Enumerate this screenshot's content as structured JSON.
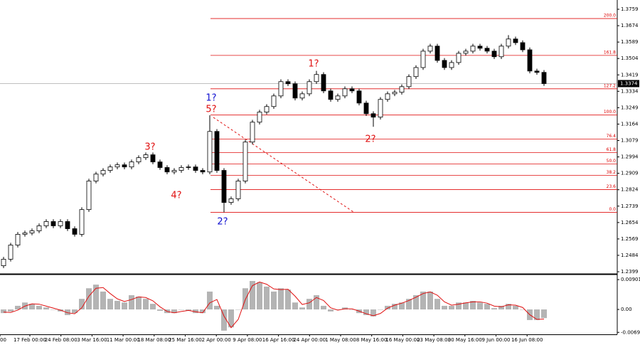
{
  "chart_data": {
    "type": "candlestick",
    "open": [
      1.243,
      1.2464,
      1.2537,
      1.2593,
      1.26,
      1.2611,
      1.2637,
      1.2659,
      1.2637,
      1.2659,
      1.2622,
      1.2593,
      1.2721,
      1.2869,
      1.2905,
      1.2924,
      1.2942,
      1.2953,
      1.2942,
      1.2968,
      1.299,
      1.3005,
      1.2968,
      1.2939,
      1.2916,
      1.2924,
      1.2939,
      1.2942,
      1.2924,
      1.2916,
      1.3126,
      1.2924,
      1.2758,
      1.2777,
      1.2869,
      1.3071,
      1.3174,
      1.3226,
      1.3255,
      1.331,
      1.3384,
      1.3373,
      1.3299,
      1.3321,
      1.3384,
      1.3421,
      1.3336,
      1.3292,
      1.331,
      1.3347,
      1.3336,
      1.3273,
      1.3218,
      1.32,
      1.3292,
      1.3321,
      1.3329,
      1.3358,
      1.341,
      1.3457,
      1.3542,
      1.3568,
      1.3494,
      1.3457,
      1.3483,
      1.3531,
      1.3542,
      1.3568,
      1.3557,
      1.3542,
      1.3513,
      1.3568,
      1.3605,
      1.3586,
      1.3549,
      1.3439,
      1.3432
    ],
    "high": [
      1.2476,
      1.2549,
      1.2605,
      1.2612,
      1.2623,
      1.2649,
      1.2671,
      1.2671,
      1.2671,
      1.2671,
      1.2634,
      1.2733,
      1.2881,
      1.2917,
      1.2936,
      1.2954,
      1.2965,
      1.2965,
      1.298,
      1.3002,
      1.3017,
      1.3017,
      1.298,
      1.2951,
      1.2936,
      1.2951,
      1.2954,
      1.2954,
      1.2936,
      1.321,
      1.3138,
      1.2936,
      1.2789,
      1.2881,
      1.3083,
      1.3186,
      1.3238,
      1.3267,
      1.3322,
      1.3396,
      1.3396,
      1.3385,
      1.3333,
      1.3396,
      1.344,
      1.3433,
      1.3348,
      1.3322,
      1.3359,
      1.3359,
      1.3348,
      1.3285,
      1.323,
      1.3304,
      1.3333,
      1.3341,
      1.337,
      1.3422,
      1.3469,
      1.3554,
      1.358,
      1.358,
      1.3506,
      1.3495,
      1.3543,
      1.3554,
      1.358,
      1.358,
      1.3569,
      1.3554,
      1.358,
      1.3625,
      1.3617,
      1.3598,
      1.3561,
      1.3451,
      1.3444
    ],
    "low": [
      1.2418,
      1.2452,
      1.2525,
      1.2581,
      1.2588,
      1.2599,
      1.2625,
      1.2625,
      1.2625,
      1.261,
      1.2581,
      1.2581,
      1.2709,
      1.2857,
      1.2893,
      1.2912,
      1.293,
      1.293,
      1.293,
      1.2956,
      1.2978,
      1.2956,
      1.2927,
      1.2904,
      1.2904,
      1.2912,
      1.2927,
      1.2912,
      1.2904,
      1.2904,
      1.2912,
      1.2707,
      1.2746,
      1.2765,
      1.2857,
      1.3059,
      1.3162,
      1.3214,
      1.3243,
      1.3298,
      1.3361,
      1.3287,
      1.3287,
      1.3309,
      1.3372,
      1.3324,
      1.328,
      1.328,
      1.3298,
      1.3324,
      1.3261,
      1.3206,
      1.315,
      1.3188,
      1.328,
      1.3309,
      1.3317,
      1.3346,
      1.3398,
      1.3445,
      1.353,
      1.3482,
      1.3445,
      1.3445,
      1.3471,
      1.3519,
      1.353,
      1.3545,
      1.353,
      1.3501,
      1.3501,
      1.3556,
      1.3574,
      1.3537,
      1.3427,
      1.342,
      1.3362
    ],
    "close": [
      1.2464,
      1.2537,
      1.2593,
      1.26,
      1.2611,
      1.2637,
      1.2659,
      1.2637,
      1.2659,
      1.2622,
      1.2593,
      1.2721,
      1.2869,
      1.2905,
      1.2924,
      1.2942,
      1.2953,
      1.2942,
      1.2968,
      1.299,
      1.3005,
      1.2968,
      1.2939,
      1.2916,
      1.2924,
      1.2939,
      1.2942,
      1.2924,
      1.2916,
      1.3126,
      1.2924,
      1.2758,
      1.2777,
      1.2869,
      1.3071,
      1.3174,
      1.3226,
      1.3255,
      1.331,
      1.3384,
      1.3373,
      1.3299,
      1.3321,
      1.3384,
      1.3421,
      1.3336,
      1.3292,
      1.331,
      1.3347,
      1.3336,
      1.3273,
      1.3218,
      1.32,
      1.3292,
      1.3321,
      1.3329,
      1.3358,
      1.341,
      1.3457,
      1.3542,
      1.3568,
      1.3494,
      1.3457,
      1.3483,
      1.3531,
      1.3542,
      1.3568,
      1.3557,
      1.3542,
      1.3513,
      1.3568,
      1.3605,
      1.3586,
      1.3549,
      1.3439,
      1.3432,
      1.3374
    ],
    "ylim": [
      1.2388,
      1.3807
    ],
    "yticks": [
      1.3759,
      1.3674,
      1.3589,
      1.3504,
      1.3419,
      1.3334,
      1.3249,
      1.3164,
      1.3079,
      1.2994,
      1.2909,
      1.2824,
      1.2739,
      1.2654,
      1.2569,
      1.2484,
      1.2399
    ],
    "current_price": 1.3374,
    "fib_levels": [
      {
        "value": 1.3711,
        "label": "200.0"
      },
      {
        "value": 1.352,
        "label": "161.8"
      },
      {
        "value": 1.3347,
        "label": "127.2"
      },
      {
        "value": 1.3211,
        "label": "100.0"
      },
      {
        "value": 1.3086,
        "label": "76.4"
      },
      {
        "value": 1.3016,
        "label": "61.8"
      },
      {
        "value": 1.2957,
        "label": "50.0"
      },
      {
        "value": 1.2898,
        "label": "38.2"
      },
      {
        "value": 1.2825,
        "label": "23.6"
      },
      {
        "value": 1.2707,
        "label": "0.0"
      }
    ],
    "annotations": [
      {
        "text": "1?",
        "color": "#1010d0"
      },
      {
        "text": "5?",
        "color": "#e01010"
      },
      {
        "text": "3?",
        "color": "#e01010"
      },
      {
        "text": "4?",
        "color": "#e01010"
      },
      {
        "text": "2?",
        "color": "#1010d0"
      },
      {
        "text": "1?",
        "color": "#e01010"
      },
      {
        "text": "2?",
        "color": "#e01010"
      }
    ],
    "xlabels": [
      "00",
      "17 Feb 00:00",
      "24 Feb 08:00",
      "3 Mar 16:00",
      "11 Mar 00:00",
      "18 Mar 08:00",
      "25 Mar 16:00",
      "2 Apr 00:00",
      "9 Apr 08:00",
      "16 Apr 16:00",
      "24 Apr 00:00",
      "1 May 08:00",
      "8 May 16:00",
      "16 May 00:00",
      "23 May 08:00",
      "30 May 16:00",
      "9 Jun 00:00",
      "16 Jun 08:00"
    ],
    "macd": {
      "histogram": [
        -0.0011,
        -0.0006,
        0.0011,
        0.0021,
        0.0017,
        0.0011,
        0.0006,
        0,
        -0.0006,
        -0.0017,
        -0.0011,
        0.0032,
        0.0064,
        0.0075,
        0.0054,
        0.0032,
        0.0026,
        0.0021,
        0.0043,
        0.0039,
        0.0032,
        0.0017,
        -0.0004,
        -0.0011,
        -0.0011,
        0,
        -0.0004,
        -0.0011,
        -0.0011,
        0.0054,
        0.0011,
        -0.0064,
        -0.0054,
        0,
        0.0064,
        0.0086,
        0.0082,
        0.0069,
        0.0054,
        0.0064,
        0.006,
        0.0021,
        0.0006,
        0.0032,
        0.0043,
        0.0011,
        -0.0006,
        0,
        0.0006,
        0,
        -0.0011,
        -0.0017,
        -0.0021,
        0,
        0.0011,
        0.0017,
        0.0021,
        0.0032,
        0.0043,
        0.0054,
        0.0054,
        0.0032,
        0.0011,
        0.0011,
        0.0021,
        0.0021,
        0.0026,
        0.0021,
        0.0017,
        0.0004,
        0.0011,
        0.0017,
        0.0011,
        0,
        -0.0032,
        -0.0032,
        -0.0026
      ],
      "signal": [
        -0.0008,
        -0.0009,
        -0.0002,
        0.001,
        0.0017,
        0.0016,
        0.001,
        0.0004,
        -0.0002,
        -0.001,
        -0.0013,
        0.0005,
        0.004,
        0.0064,
        0.0066,
        0.0048,
        0.0032,
        0.0024,
        0.003,
        0.0038,
        0.0036,
        0.0026,
        0.0008,
        -0.0006,
        -0.001,
        -0.0006,
        -0.0003,
        -0.0007,
        -0.001,
        0.002,
        0.003,
        -0.002,
        -0.0055,
        -0.003,
        0.003,
        0.0072,
        0.0083,
        0.0076,
        0.0062,
        0.006,
        0.0061,
        0.004,
        0.0015,
        0.002,
        0.0036,
        0.0027,
        0.0005,
        -0.0002,
        0.0002,
        0.0002,
        -0.0005,
        -0.0013,
        -0.0019,
        -0.0012,
        0.0004,
        0.0013,
        0.0019,
        0.0027,
        0.0037,
        0.0048,
        0.0053,
        0.0043,
        0.0023,
        0.0013,
        0.0016,
        0.002,
        0.0023,
        0.0023,
        0.0019,
        0.001,
        0.0008,
        0.0014,
        0.0013,
        0.0006,
        -0.0016,
        -0.003,
        -0.0029
      ],
      "ylim": [
        -0.00751,
        0.0101
      ],
      "yticks": [
        0.00901,
        {
          "value": 0,
          "label": "0.00"
        },
        -0.00692
      ],
      "hist_color": "#b4b4b4",
      "signal_color": "#e01010"
    },
    "up_color": "#ffffff",
    "down_color": "#000000",
    "fib_color": "#e01010"
  }
}
